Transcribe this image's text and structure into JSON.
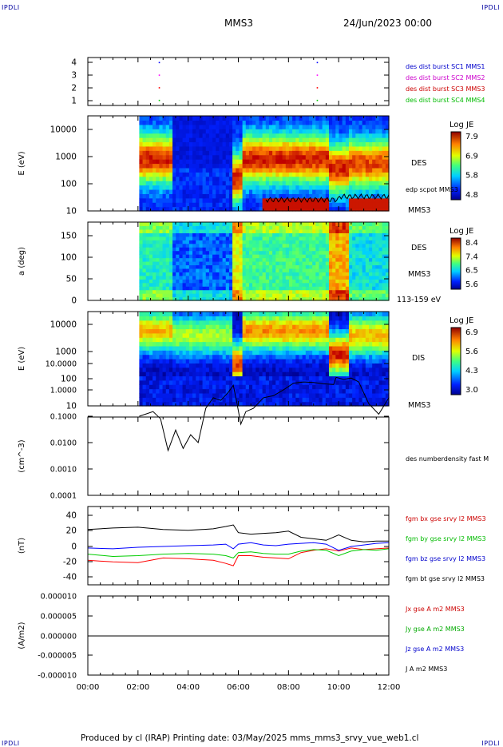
{
  "header": {
    "corner_left": "IPDLI",
    "corner_right": "IPDLI",
    "mission": "MMS3",
    "date": "24/Jun/2023 00:00"
  },
  "footer": {
    "text": "Produced by cl (IRAP)   Printing date: 03/May/2025   mms_mms3_srvy_vue_web1.cl",
    "corner_left": "IPDLI",
    "corner_right": "IPDLI"
  },
  "chart_data": {
    "type": "multi-panel time series",
    "x": {
      "ticks": [
        "00:00",
        "02:00",
        "04:00",
        "06:00",
        "08:00",
        "10:00",
        "12:00"
      ]
    },
    "panels": [
      {
        "id": "burst",
        "type": "scatter",
        "yticks": [
          "1",
          "2",
          "3",
          "4"
        ],
        "ylim": [
          0.6,
          4.4
        ],
        "points": [
          {
            "x": 2.85,
            "y": 4,
            "color": "#0000ff"
          },
          {
            "x": 2.85,
            "y": 3,
            "color": "#ff00ff"
          },
          {
            "x": 2.85,
            "y": 2,
            "color": "#ff0000"
          },
          {
            "x": 2.85,
            "y": 1,
            "color": "#00cc00"
          },
          {
            "x": 9.15,
            "y": 4,
            "color": "#0000ff"
          },
          {
            "x": 9.15,
            "y": 3,
            "color": "#ff00ff"
          },
          {
            "x": 9.15,
            "y": 2,
            "color": "#ff0000"
          },
          {
            "x": 9.15,
            "y": 1,
            "color": "#00cc00"
          }
        ],
        "legend": [
          {
            "text": "des dist burst SC1 MMS1",
            "color": "#0000cc"
          },
          {
            "text": "des dist burst SC2 MMS2",
            "color": "#cc00cc"
          },
          {
            "text": "des dist burst SC3 MMS3",
            "color": "#cc0000"
          },
          {
            "text": "des dist burst SC4 MMS4",
            "color": "#00bb00"
          }
        ]
      },
      {
        "id": "des_energy",
        "type": "heatmap",
        "ylabel": "E (eV)",
        "yticks": [
          "10",
          "100",
          "1000",
          "10000"
        ],
        "scale": "log",
        "right_labels": [
          "DES",
          "edp scpot MMS3",
          "MMS3"
        ],
        "colorbar": {
          "title": "Log JE",
          "ticks": [
            "7.9",
            "6.9",
            "5.8",
            "4.8"
          ]
        }
      },
      {
        "id": "des_pitch",
        "type": "heatmap",
        "ylabel": "a (deg)",
        "yticks": [
          "0",
          "50",
          "100",
          "150"
        ],
        "right_labels": [
          "DES",
          "MMS3",
          "113-159 eV"
        ],
        "colorbar": {
          "title": "Log JE",
          "ticks": [
            "8.4",
            "7.4",
            "6.5",
            "5.6"
          ]
        }
      },
      {
        "id": "dis_energy",
        "type": "heatmap",
        "ylabel": "E (eV)",
        "yticks": [
          "10",
          "100",
          "1000",
          "10000"
        ],
        "scale": "log",
        "right_labels": [
          "DIS",
          "MMS3"
        ],
        "colorbar": {
          "title": "Log JE",
          "ticks": [
            "6.9",
            "5.6",
            "4.3",
            "3.0"
          ]
        }
      },
      {
        "id": "density",
        "type": "line",
        "ylabel": "(cm^-3)",
        "yticks": [
          "0.0001",
          "0.0010",
          "0.0100",
          "0.1000",
          "1.0000",
          "10.0000"
        ],
        "scale": "log",
        "series": [
          {
            "name": "des numberdensity fast M",
            "color": "#000000",
            "x": [
              2.05,
              2.3,
              2.6,
              2.9,
              3.2,
              3.5,
              3.8,
              4.1,
              4.4,
              4.7,
              5.0,
              5.3,
              5.6,
              5.8,
              5.95,
              6.1,
              6.3,
              6.6,
              7.0,
              7.4,
              7.8,
              8.2,
              8.6,
              9.0,
              9.4,
              9.8,
              9.9,
              10.2,
              10.5,
              10.8,
              11.2,
              11.6,
              12.0
            ],
            "y": [
              0.1,
              0.12,
              0.15,
              0.08,
              0.005,
              0.03,
              0.006,
              0.02,
              0.01,
              0.2,
              0.5,
              0.4,
              0.8,
              1.5,
              0.3,
              0.05,
              0.15,
              0.2,
              0.5,
              0.6,
              1.0,
              1.8,
              2.0,
              1.9,
              1.7,
              1.6,
              3.0,
              2.5,
              2.8,
              2.0,
              0.3,
              0.12,
              0.5
            ]
          }
        ]
      },
      {
        "id": "fgm",
        "type": "line",
        "ylabel": "(nT)",
        "yticks": [
          "-40",
          "-20",
          "0",
          "20",
          "40"
        ],
        "ylim": [
          -50,
          50
        ],
        "series": [
          {
            "name": "fgm bx gse srvy l2 MMS3",
            "color": "#ff0000",
            "x": [
              0,
              1,
              2,
              3,
              4,
              5,
              5.5,
              5.8,
              6.0,
              6.5,
              7.0,
              7.5,
              8.0,
              8.5,
              9.0,
              9.5,
              10.0,
              10.5,
              11.0,
              11.5,
              12.0
            ],
            "y": [
              -18,
              -20,
              -21,
              -15,
              -16,
              -18,
              -22,
              -25,
              -12,
              -12,
              -14,
              -15,
              -16,
              -8,
              -5,
              -3,
              -6,
              -2,
              -4,
              -3,
              -2
            ]
          },
          {
            "name": "fgm by gse srvy l2 MMS3",
            "color": "#00cc00",
            "x": [
              0,
              1,
              2,
              3,
              4,
              5,
              5.5,
              5.8,
              6.0,
              6.5,
              7.0,
              7.5,
              8.0,
              8.5,
              9.0,
              9.5,
              10.0,
              10.5,
              11.0,
              11.5,
              12.0
            ],
            "y": [
              -10,
              -13,
              -12,
              -10,
              -9,
              -10,
              -12,
              -15,
              -8,
              -7,
              -9,
              -10,
              -10,
              -6,
              -4,
              -5,
              -12,
              -6,
              -4,
              -5,
              -3
            ]
          },
          {
            "name": "fgm bz gse srvy l2 MMS3",
            "color": "#0000ff",
            "x": [
              0,
              1,
              2,
              3,
              4,
              5,
              5.5,
              5.8,
              6.0,
              6.5,
              7.0,
              7.5,
              8.0,
              8.5,
              9.0,
              9.5,
              10.0,
              10.5,
              11.0,
              11.5,
              12.0
            ],
            "y": [
              -2,
              -3,
              -1,
              0,
              1,
              2,
              3,
              -3,
              3,
              5,
              2,
              1,
              3,
              4,
              5,
              3,
              -5,
              0,
              2,
              4,
              5
            ]
          },
          {
            "name": "fgm bt gse srvy l2 MMS3",
            "color": "#000000",
            "x": [
              0,
              1,
              2,
              3,
              4,
              5,
              5.5,
              5.8,
              6.0,
              6.5,
              7.0,
              7.5,
              8.0,
              8.5,
              9.0,
              9.5,
              10.0,
              10.5,
              11.0,
              11.5,
              12.0
            ],
            "y": [
              22,
              24,
              25,
              22,
              21,
              23,
              26,
              28,
              18,
              16,
              17,
              18,
              20,
              12,
              10,
              8,
              15,
              8,
              6,
              7,
              7
            ]
          }
        ]
      },
      {
        "id": "current",
        "type": "line",
        "ylabel": "(A/m2)",
        "yticks": [
          "-0.000010",
          "-0.000005",
          "0.000000",
          "0.000005",
          "0.000010"
        ],
        "ylim": [
          -1e-05,
          1e-05
        ],
        "series": [
          {
            "name": "Jx gse A m2 MMS3",
            "color": "#cc0000",
            "x": [
              0,
              12
            ],
            "y": [
              0,
              0
            ]
          },
          {
            "name": "Jy gse A m2 MMS3",
            "color": "#00aa00",
            "x": [
              0,
              12
            ],
            "y": [
              0,
              0
            ]
          },
          {
            "name": "Jz gse A m2 MMS3",
            "color": "#0000cc",
            "x": [
              0,
              12
            ],
            "y": [
              0,
              0
            ]
          },
          {
            "name": "J A m2 MMS3",
            "color": "#000000",
            "x": [
              0,
              12
            ],
            "y": [
              0,
              0
            ]
          }
        ]
      }
    ]
  }
}
